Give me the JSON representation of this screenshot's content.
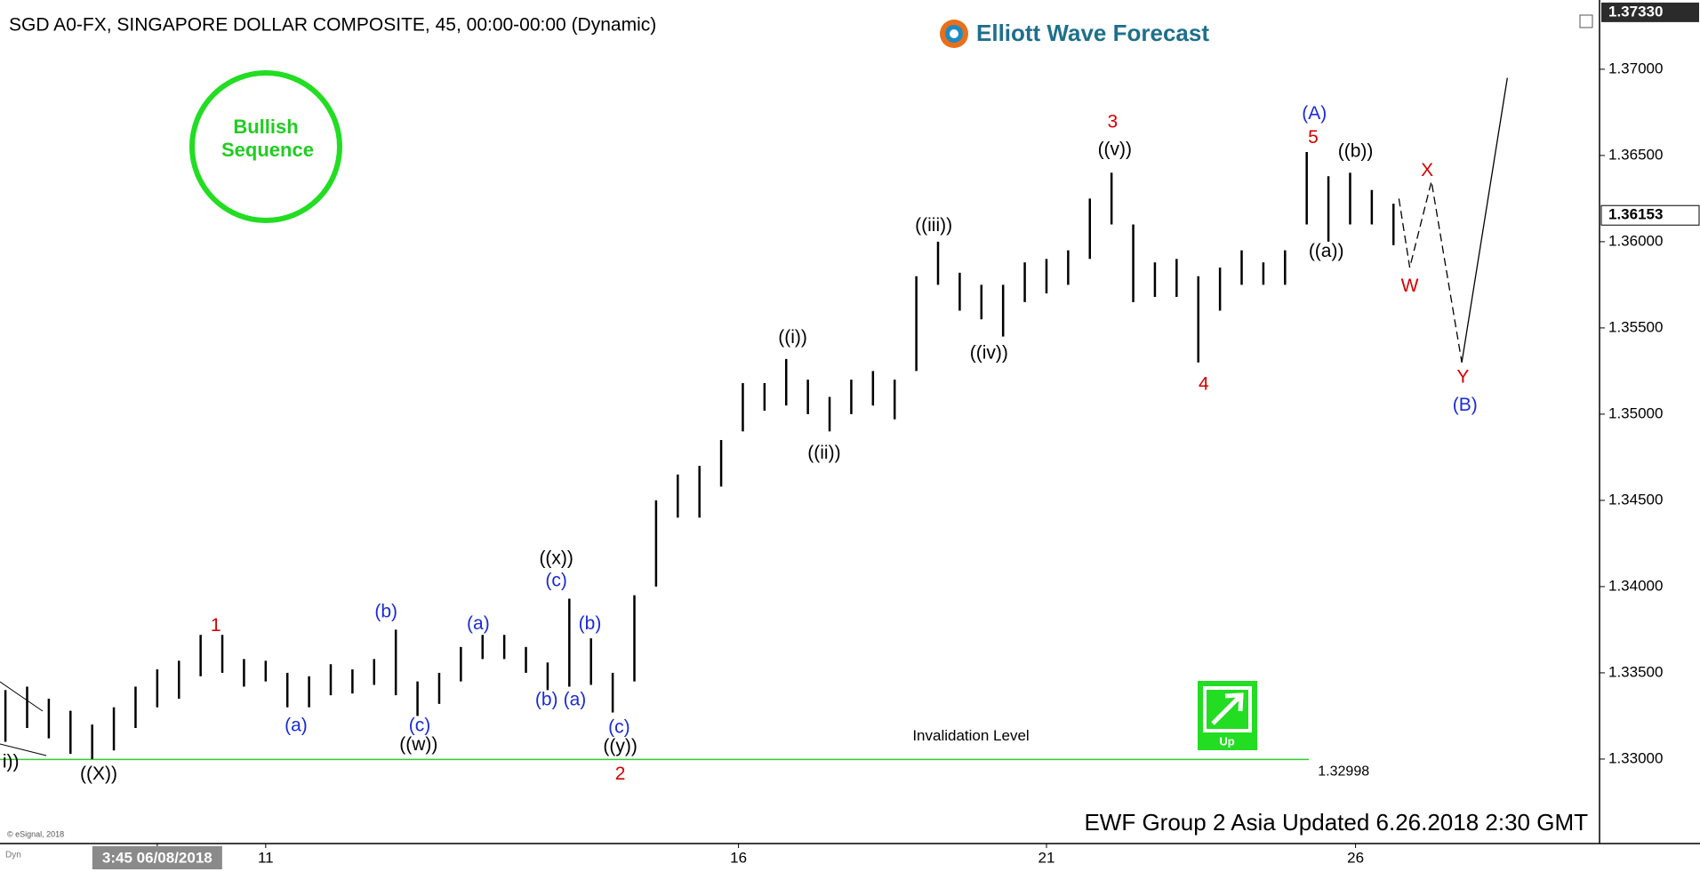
{
  "chart_data": {
    "type": "ohlc",
    "title": "SGD A0-FX, SINGAPORE DOLLAR COMPOSITE, 45, 00:00-00:00 (Dynamic)",
    "brand": "Elliott Wave Forecast",
    "badge": "Bullish Sequence",
    "footer": "EWF Group 2 Asia Updated 6.26.2018 2:30 GMT",
    "credit": "© eSignal, 2018",
    "dyn": "Dyn",
    "up_label": "Up",
    "invalidation_label": "Invalidation Level",
    "invalidation": 1.32998,
    "invalidation_end": 60.1,
    "top_price": {
      "value": 1.3733,
      "label": "1.37330"
    },
    "last_price": 1.36153,
    "ylim": [
      1.3251,
      1.3735
    ],
    "yticks": [
      {
        "value": 1.33,
        "label": "1.33000"
      },
      {
        "value": 1.335,
        "label": "1.33500"
      },
      {
        "value": 1.34,
        "label": "1.34000"
      },
      {
        "value": 1.345,
        "label": "1.34500"
      },
      {
        "value": 1.35,
        "label": "1.35000"
      },
      {
        "value": 1.355,
        "label": "1.35500"
      },
      {
        "value": 1.36,
        "label": "1.36000"
      },
      {
        "value": 1.365,
        "label": "1.36500"
      },
      {
        "value": 1.37,
        "label": "1.37000"
      }
    ],
    "xlim": [
      -0.25,
      73.5
    ],
    "xticks": [
      {
        "value": 7,
        "label": "3:45 06/08/2018"
      },
      {
        "value": 12,
        "label": "11"
      },
      {
        "value": 33.8,
        "label": "16"
      },
      {
        "value": 48,
        "label": "21"
      },
      {
        "value": 62.25,
        "label": "26"
      }
    ],
    "bar_color": "#000000",
    "x": [
      0,
      1,
      2,
      3,
      4,
      5,
      6,
      7,
      8,
      9,
      10,
      11,
      12,
      13,
      14,
      15,
      16,
      17,
      18,
      19,
      20,
      21,
      22,
      23,
      24,
      25,
      26,
      27,
      28,
      29,
      30,
      31,
      32,
      33,
      34,
      35,
      36,
      37,
      38,
      39,
      40,
      41,
      42,
      43,
      44,
      45,
      46,
      47,
      48,
      49,
      50,
      51,
      52,
      53,
      54,
      55,
      56,
      57,
      58,
      59,
      60,
      61,
      62,
      63,
      64
    ],
    "low": [
      1.331,
      1.3318,
      1.3312,
      1.3303,
      1.33,
      1.3305,
      1.3318,
      1.333,
      1.3335,
      1.3348,
      1.335,
      1.3342,
      1.3345,
      1.333,
      1.333,
      1.3337,
      1.3338,
      1.3343,
      1.3337,
      1.3325,
      1.3332,
      1.3345,
      1.3358,
      1.3358,
      1.335,
      1.334,
      1.3342,
      1.3343,
      1.3327,
      1.3345,
      1.34,
      1.344,
      1.344,
      1.3458,
      1.349,
      1.3502,
      1.3505,
      1.35,
      1.349,
      1.35,
      1.3505,
      1.3497,
      1.3525,
      1.3575,
      1.356,
      1.3555,
      1.3545,
      1.3565,
      1.357,
      1.3575,
      1.359,
      1.361,
      1.3565,
      1.3568,
      1.3568,
      1.353,
      1.356,
      1.3575,
      1.3575,
      1.3575,
      1.361,
      1.36,
      1.361,
      1.361,
      1.3598
    ],
    "high": [
      1.334,
      1.3342,
      1.3335,
      1.3328,
      1.332,
      1.333,
      1.3342,
      1.3352,
      1.3357,
      1.3372,
      1.3372,
      1.3358,
      1.3357,
      1.335,
      1.3348,
      1.3355,
      1.3352,
      1.3358,
      1.3375,
      1.3345,
      1.335,
      1.3365,
      1.3372,
      1.3372,
      1.3365,
      1.3356,
      1.3393,
      1.337,
      1.335,
      1.3395,
      1.345,
      1.3465,
      1.347,
      1.3485,
      1.3518,
      1.3518,
      1.3532,
      1.352,
      1.351,
      1.352,
      1.3525,
      1.352,
      1.358,
      1.36,
      1.3582,
      1.3575,
      1.3575,
      1.3588,
      1.359,
      1.3595,
      1.3625,
      1.364,
      1.361,
      1.3588,
      1.359,
      1.358,
      1.3585,
      1.3595,
      1.3588,
      1.3595,
      1.3652,
      1.3638,
      1.364,
      1.363,
      1.3622
    ],
    "projection": {
      "x": [
        64.25,
        64.75,
        65.75,
        67.15,
        69.25
      ],
      "values": [
        1.3625,
        1.3585,
        1.3635,
        1.353,
        1.3695
      ],
      "dashed_until": 3
    },
    "annotations": [
      {
        "text": "i))",
        "x": 0.25,
        "y": 1.3298,
        "color": "#000000"
      },
      {
        "text": "((X))",
        "x": 4.3,
        "y": 1.3291,
        "color": "#000000"
      },
      {
        "text": "1",
        "x": 9.7,
        "y": 1.3377,
        "color": "#d40000"
      },
      {
        "text": "(a)",
        "x": 13.4,
        "y": 1.3319,
        "color": "#1a2bd6"
      },
      {
        "text": "(b)",
        "x": 17.55,
        "y": 1.3385,
        "color": "#1a2bd6"
      },
      {
        "text": "(c)",
        "x": 19.1,
        "y": 1.3319,
        "color": "#1a2bd6"
      },
      {
        "text": "((w))",
        "x": 19.05,
        "y": 1.3308,
        "color": "#000000"
      },
      {
        "text": "(a)",
        "x": 21.8,
        "y": 1.3378,
        "color": "#1a2bd6"
      },
      {
        "text": "(b)",
        "x": 24.95,
        "y": 1.3334,
        "color": "#1a2bd6"
      },
      {
        "text": "((x))",
        "x": 25.4,
        "y": 1.3416,
        "color": "#000000"
      },
      {
        "text": "(c)",
        "x": 25.4,
        "y": 1.3403,
        "color": "#1a2bd6"
      },
      {
        "text": "(a)",
        "x": 26.25,
        "y": 1.3334,
        "color": "#1a2bd6"
      },
      {
        "text": "(b)",
        "x": 26.95,
        "y": 1.3378,
        "color": "#1a2bd6"
      },
      {
        "text": "(c)",
        "x": 28.3,
        "y": 1.3318,
        "color": "#1a2bd6"
      },
      {
        "text": "((y))",
        "x": 28.35,
        "y": 1.3307,
        "color": "#000000"
      },
      {
        "text": "2",
        "x": 28.35,
        "y": 1.3291,
        "color": "#d40000"
      },
      {
        "text": "((i))",
        "x": 36.3,
        "y": 1.3544,
        "color": "#000000"
      },
      {
        "text": "((ii))",
        "x": 37.75,
        "y": 1.3477,
        "color": "#000000"
      },
      {
        "text": "((iii))",
        "x": 42.8,
        "y": 1.3609,
        "color": "#000000"
      },
      {
        "text": "((iv))",
        "x": 45.35,
        "y": 1.3535,
        "color": "#000000"
      },
      {
        "text": "3",
        "x": 51.05,
        "y": 1.3669,
        "color": "#d40000"
      },
      {
        "text": "((v))",
        "x": 51.15,
        "y": 1.3653,
        "color": "#000000"
      },
      {
        "text": "4",
        "x": 55.25,
        "y": 1.3517,
        "color": "#d40000"
      },
      {
        "text": "(A)",
        "x": 60.35,
        "y": 1.3674,
        "color": "#1a2bd6"
      },
      {
        "text": "5",
        "x": 60.3,
        "y": 1.366,
        "color": "#d40000"
      },
      {
        "text": "((a))",
        "x": 60.9,
        "y": 1.3594,
        "color": "#000000"
      },
      {
        "text": "((b))",
        "x": 62.25,
        "y": 1.3652,
        "color": "#000000"
      },
      {
        "text": "W",
        "x": 64.75,
        "y": 1.3574,
        "color": "#d40000"
      },
      {
        "text": "X",
        "x": 65.55,
        "y": 1.3641,
        "color": "#d40000"
      },
      {
        "text": "Y",
        "x": 67.2,
        "y": 1.3521,
        "color": "#d40000"
      },
      {
        "text": "(B)",
        "x": 67.3,
        "y": 1.3505,
        "color": "#1a2bd6"
      }
    ]
  }
}
